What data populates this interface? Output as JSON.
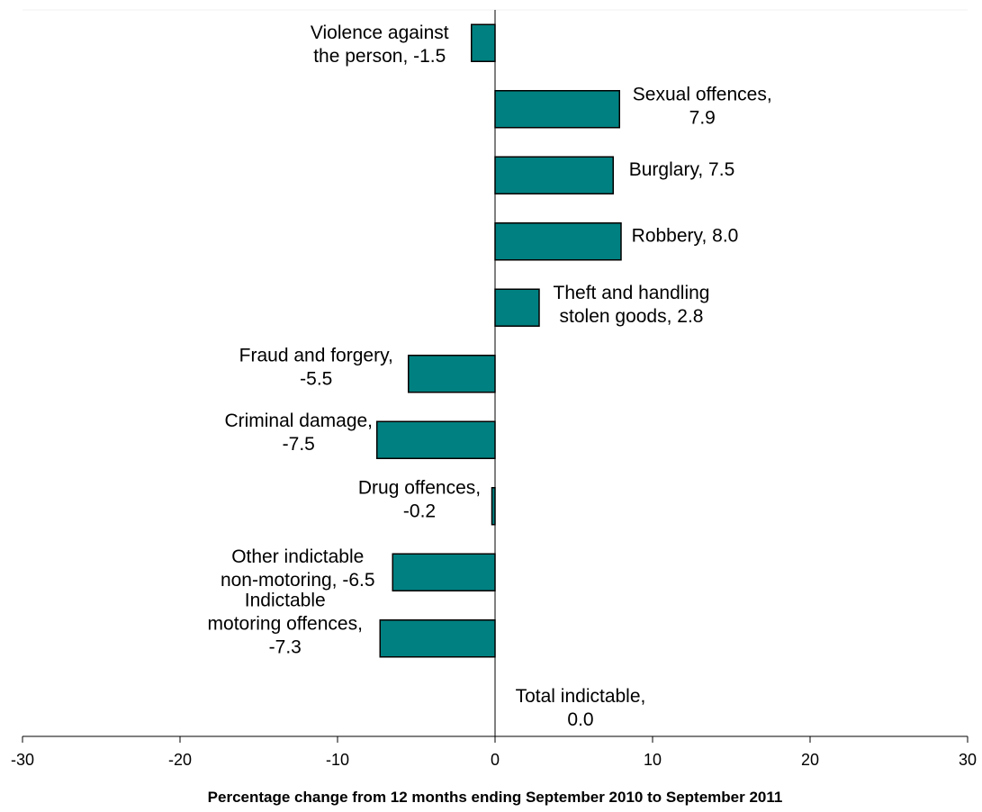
{
  "chart_data": {
    "type": "bar",
    "orientation": "horizontal",
    "title": "",
    "xlabel": "Percentage change from 12 months ending September 2010 to September 2011",
    "ylabel": "",
    "xlim": [
      -30,
      30
    ],
    "xticks": [
      "-30",
      "-20",
      "-10",
      "0",
      "10",
      "20",
      "30"
    ],
    "grid": false,
    "legend": "none",
    "bar_color": "#008080",
    "bar_edge_color": "#000000",
    "categories": [
      "Violence against the person",
      "Sexual offences",
      "Burglary",
      "Robbery",
      "Theft and handling stolen goods",
      "Fraud and forgery",
      "Criminal damage",
      "Drug offences",
      "Other indictable non-motoring",
      "Indictable motoring offences",
      "Total indictable"
    ],
    "values": [
      -1.5,
      7.9,
      7.5,
      8.0,
      2.8,
      -5.5,
      -7.5,
      -0.2,
      -6.5,
      -7.3,
      0.0
    ],
    "data_labels": [
      [
        "Violence against",
        "the person, -1.5"
      ],
      [
        "Sexual offences,",
        "7.9"
      ],
      [
        "Burglary, 7.5"
      ],
      [
        "Robbery, 8.0"
      ],
      [
        "Theft and handling",
        "stolen goods, 2.8"
      ],
      [
        "Fraud and forgery,",
        "-5.5"
      ],
      [
        "Criminal damage,",
        "-7.5"
      ],
      [
        "Drug offences,",
        "-0.2"
      ],
      [
        "Other indictable",
        "non-motoring, -6.5"
      ],
      [
        "Indictable",
        "motoring offences,",
        "-7.3"
      ],
      [
        "Total indictable,",
        "0.0"
      ]
    ]
  }
}
